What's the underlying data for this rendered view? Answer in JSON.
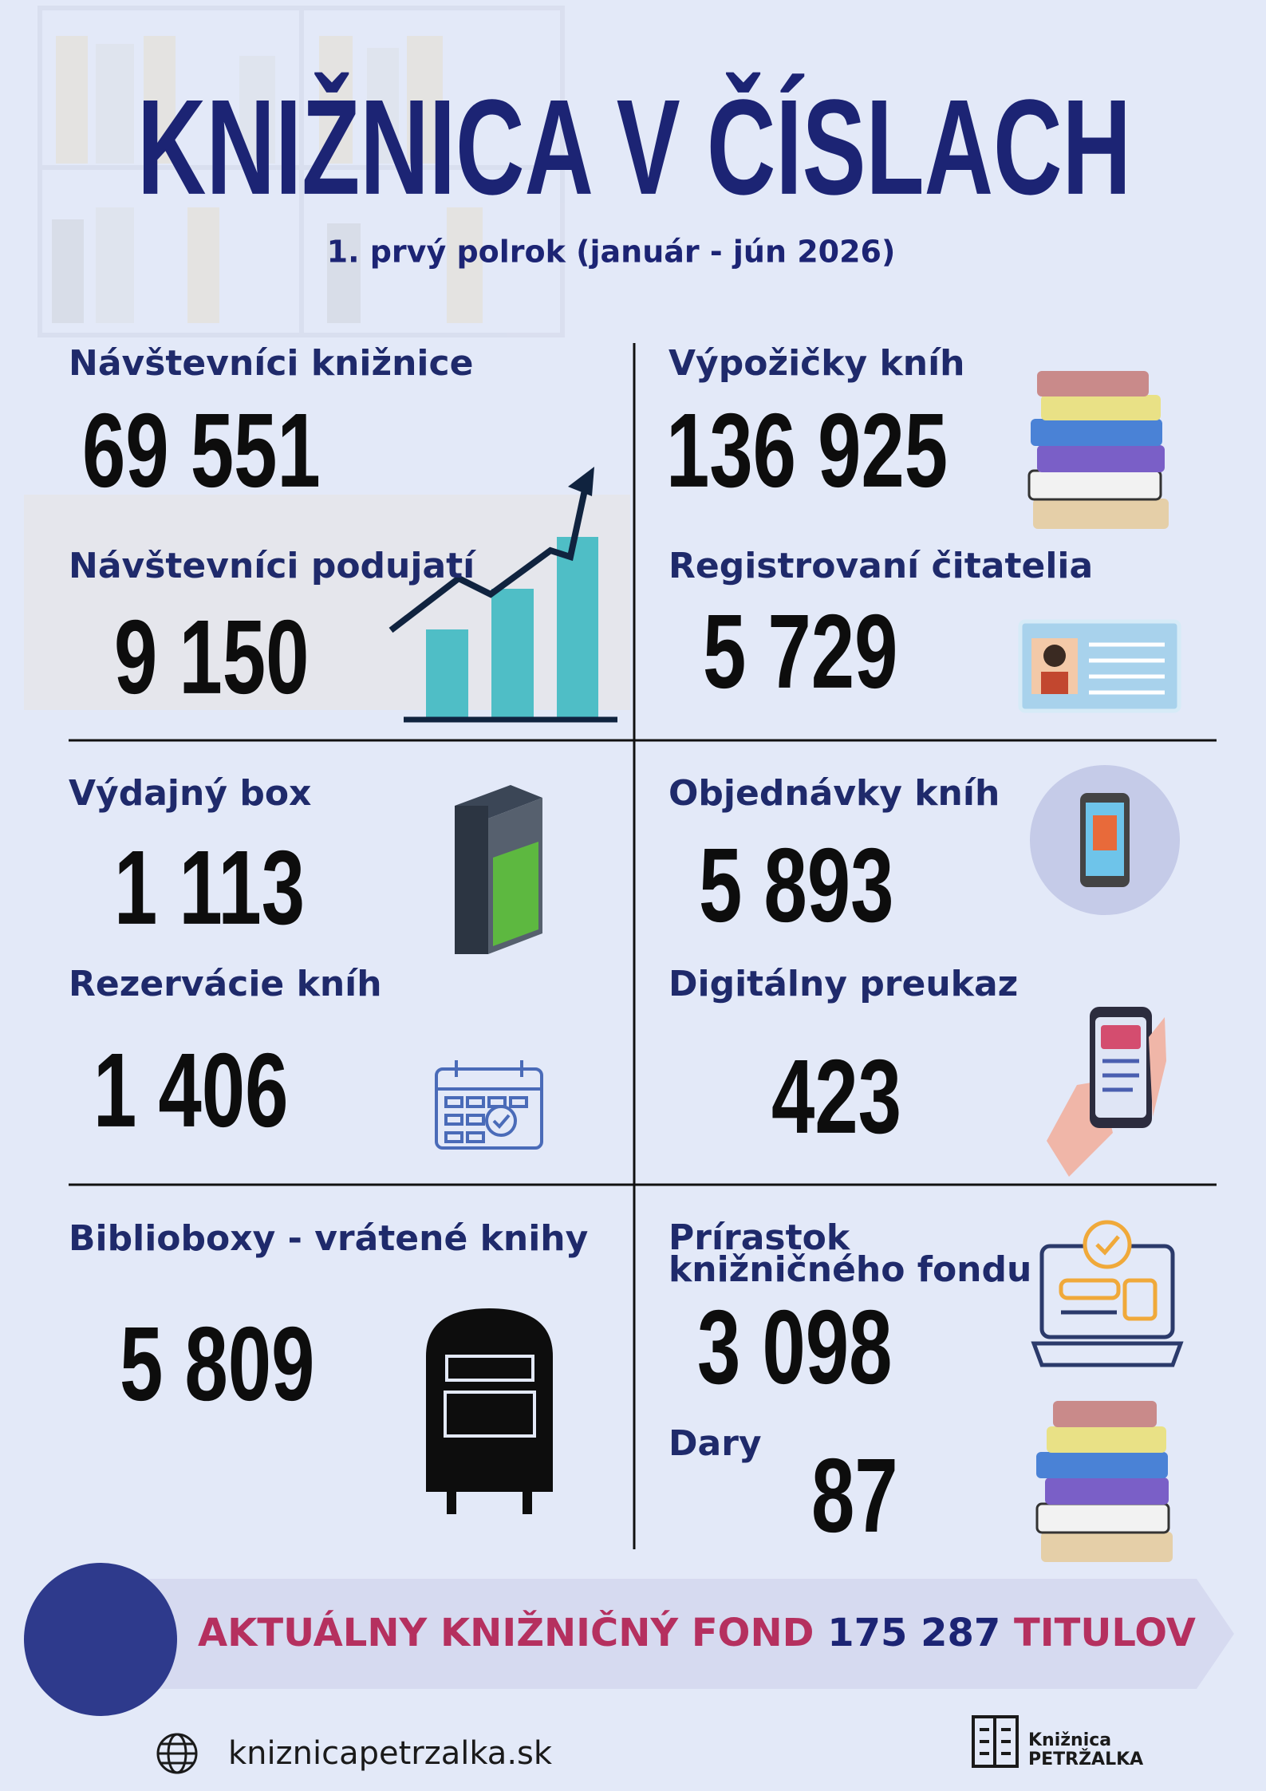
{
  "header": {
    "title": "KNIŽNICA V ČÍSLACH",
    "subtitle": "1. prvý polrok (január - jún 2026)"
  },
  "stats": [
    {
      "label": "Návštevníci knižnice",
      "value": "69 551"
    },
    {
      "label": "Návštevníci podujatí",
      "value": "9 150"
    },
    {
      "label": "Výdajný box",
      "value": "1 113"
    },
    {
      "label": "Rezervácie kníh",
      "value": "1 406"
    },
    {
      "label": "Biblioboxy - vrátené knihy",
      "value": "5 809"
    },
    {
      "label": "Výpožičky kníh",
      "value": "136 925"
    },
    {
      "label": "Registrovaní čitatelia",
      "value": "5 729"
    },
    {
      "label": "Objednávky kníh",
      "value": "5 893"
    },
    {
      "label": "Digitálny preukaz",
      "value": "423"
    },
    {
      "label_lines": [
        "Prírastok",
        "knižničného fondu"
      ],
      "value": "3 098"
    },
    {
      "label": "Dary",
      "value": "87"
    }
  ],
  "banner": {
    "prefix": "AKTUÁLNY KNIŽNIČNÝ FOND",
    "value": "175 287",
    "suffix": "TITULOV"
  },
  "footer": {
    "website": "kniznicapetrzalka.sk",
    "logo_line1": "Knižnica",
    "logo_line2": "PETRŽALKA"
  }
}
